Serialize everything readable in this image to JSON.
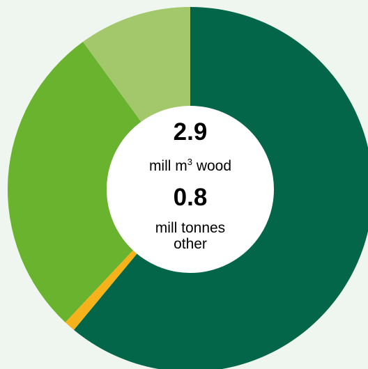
{
  "chart_data": {
    "type": "pie",
    "donut": true,
    "slices": [
      {
        "value": 61.0,
        "color": "#046649"
      },
      {
        "value": 1.0,
        "color": "#f6b21b"
      },
      {
        "value": 28.0,
        "color": "#6ab32e"
      },
      {
        "value": 10.0,
        "color": "#a3c86b"
      }
    ],
    "center": {
      "wood_value": "2.9",
      "wood_unit_prefix": "mill m",
      "wood_unit_sup": "3",
      "wood_unit_suffix": " wood",
      "other_value": "0.8",
      "other_unit_line1": "mill tonnes",
      "other_unit_line2": "other"
    }
  }
}
